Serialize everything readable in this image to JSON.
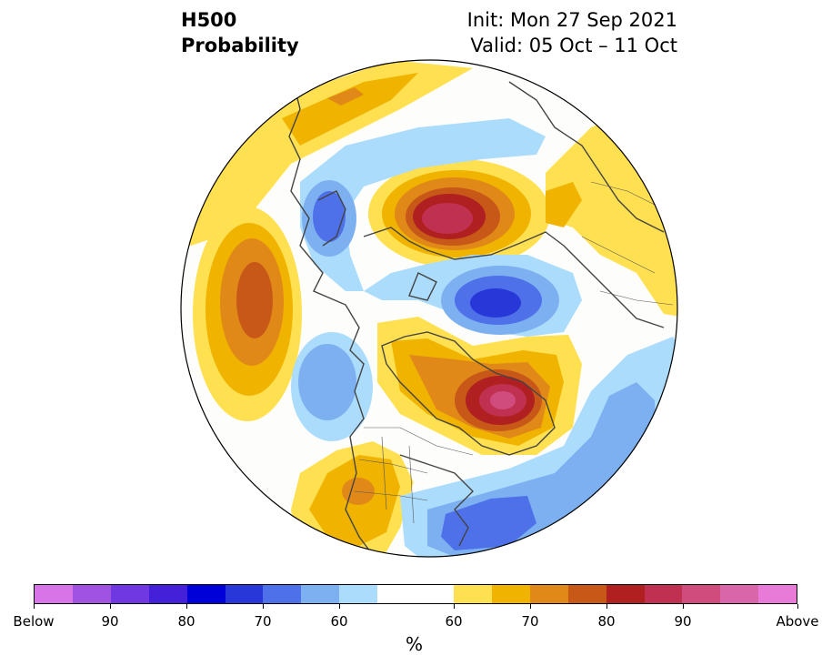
{
  "header": {
    "title_line1": "H500",
    "title_line2": "Probability",
    "init": "Init: Mon 27 Sep 2021",
    "valid": "Valid: 05 Oct – 11 Oct"
  },
  "colorbar": {
    "colors": [
      "#d774e8",
      "#a052e0",
      "#7038e0",
      "#4420d8",
      "#0000d8",
      "#2838d8",
      "#4e70e8",
      "#7cb0f0",
      "#acdcfc",
      "#ffffff",
      "#ffffff",
      "#ffe050",
      "#f0b400",
      "#e08818",
      "#c85818",
      "#b02020",
      "#c03050",
      "#d04c7c",
      "#d866a8",
      "#e87ad8"
    ],
    "labels": [
      "Below",
      "90",
      "80",
      "70",
      "60",
      "60",
      "70",
      "80",
      "90",
      "Above"
    ],
    "unit": "%"
  },
  "map": {
    "projection": "north polar stereographic",
    "anomalies": [
      {
        "sign": "above",
        "region": "Barents / Kara Sea",
        "peak_percent": 80
      },
      {
        "sign": "above",
        "region": "Hudson Bay / Labrador",
        "peak_percent": 90
      },
      {
        "sign": "above",
        "region": "Bering Sea / North Pacific",
        "peak_percent": 70
      },
      {
        "sign": "above",
        "region": "Western United States",
        "peak_percent": 65
      },
      {
        "sign": "above",
        "region": "Eastern Europe / Western Russia",
        "peak_percent": 60
      },
      {
        "sign": "below",
        "region": "Siberian Arctic / East Siberian Sea",
        "peak_percent": 70
      },
      {
        "sign": "below",
        "region": "Western North Atlantic",
        "peak_percent": 70
      },
      {
        "sign": "below",
        "region": "Gulf of Alaska",
        "peak_percent": 60
      },
      {
        "sign": "below",
        "region": "Northern Europe / Scandinavia",
        "peak_percent": 65
      }
    ]
  }
}
